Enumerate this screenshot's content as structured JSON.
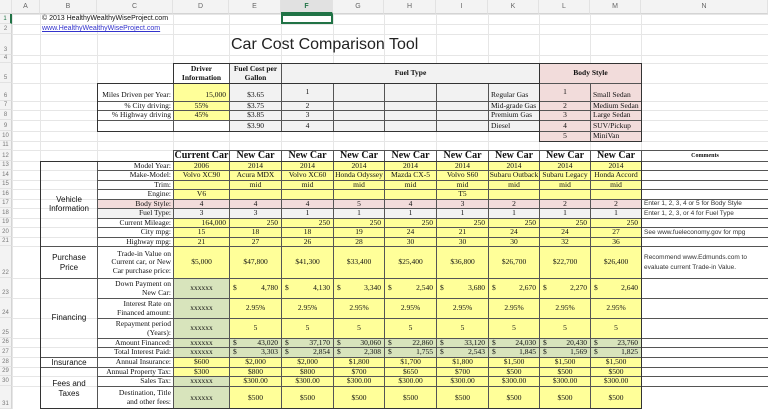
{
  "sheet": {
    "columns": [
      "",
      "A",
      "B",
      "C",
      "D",
      "E",
      "F",
      "G",
      "H",
      "I",
      "K",
      "L",
      "M",
      "N"
    ],
    "selected_column": "F",
    "selected_row": "1",
    "rows": [
      "1",
      "2",
      "3",
      "4",
      "5",
      "6",
      "7",
      "8",
      "9",
      "10",
      "11",
      "12",
      "13",
      "14",
      "15",
      "16",
      "17",
      "18",
      "19",
      "20",
      "21",
      "22",
      "23",
      "24",
      "25",
      "26",
      "27",
      "28",
      "29",
      "30",
      "31"
    ]
  },
  "header": {
    "copyright": "© 2013 HealthyWealthyWiseProject.com",
    "link": "www.HealthyWealthyWiseProject.com",
    "title": "Car Cost Comparison Tool"
  },
  "driver": {
    "header": "Driver Information",
    "rows": [
      {
        "label": "Miles Driven per Year:",
        "value": "15,000"
      },
      {
        "label": "% City driving:",
        "value": "55%"
      },
      {
        "label": "% Highway driving",
        "value": "45%"
      }
    ]
  },
  "fuel_cost": {
    "header": "Fuel Cost per Gallon",
    "values": [
      "$3.65",
      "$3.75",
      "$3.85",
      "$3.90"
    ],
    "codes": [
      "1",
      "2",
      "3",
      "4"
    ]
  },
  "fuel_type": {
    "header": "Fuel Type",
    "names": [
      "Regular Gas",
      "Mid-grade Gas",
      "Premium Gas",
      "Diesel"
    ]
  },
  "body_style": {
    "header": "Body Style",
    "items": [
      {
        "code": "1",
        "name": "Small Sedan"
      },
      {
        "code": "2",
        "name": "Medium Sedan"
      },
      {
        "code": "3",
        "name": "Large Sedan"
      },
      {
        "code": "4",
        "name": "SUV/Pickup"
      },
      {
        "code": "5",
        "name": "MiniVan"
      }
    ]
  },
  "comparison": {
    "comments_header": "Comments",
    "car_headers": [
      "Current Car",
      "New Car",
      "New Car",
      "New Car",
      "New Car",
      "New Car",
      "New Car",
      "New Car",
      "New Car"
    ],
    "sections": {
      "vehicle": "Vehicle Information",
      "purchase": "Purchase Price",
      "financing": "Financing",
      "insurance": "Insurance",
      "fees": "Fees and Taxes"
    },
    "labels": {
      "model_year": "Model Year:",
      "make_model": "Make-Model:",
      "trim": "Trim:",
      "engine": "Engine:",
      "body_style": "Body Style:",
      "fuel_type": "Fuel Type:",
      "mileage": "Current Mileage:",
      "city_mpg": "City mpg:",
      "hwy_mpg": "Highway mpg:",
      "price": "Trade-in Value on Current car, or New Car purchase price:",
      "down": "Down Payment on New Car:",
      "rate": "Interest Rate on Financed amount:",
      "period": "Repayment period (Years):",
      "financed": "Amount Financed:",
      "interest": "Total Interest Paid:",
      "insurance": "Annual Insurance:",
      "property_tax": "Annual Property Tax:",
      "sales_tax": "Sales Tax:",
      "fees": "Destination, Title and other fees:"
    },
    "cars": [
      {
        "year": "2006",
        "model": "Volvo XC90",
        "trim": "",
        "engine": "V6",
        "body": "4",
        "fuel": "3",
        "mileage": "164,000",
        "city": "15",
        "hwy": "21",
        "price": "$5,000",
        "down": "xxxxxx",
        "rate": "xxxxxx",
        "period": "xxxxxx",
        "financed": "xxxxxx",
        "interest": "xxxxxx",
        "insurance": "$600",
        "property_tax": "$300",
        "sales_tax": "xxxxxx",
        "fees": "xxxxxx"
      },
      {
        "year": "2014",
        "model": "Acura MDX",
        "trim": "mid",
        "engine": "",
        "body": "4",
        "fuel": "3",
        "mileage": "250",
        "city": "18",
        "hwy": "27",
        "price": "$47,800",
        "down": "4,780",
        "rate": "2.95%",
        "period": "5",
        "financed": "43,020",
        "interest": "3,303",
        "insurance": "$2,000",
        "property_tax": "$800",
        "sales_tax": "$300.00",
        "fees": "$500"
      },
      {
        "year": "2014",
        "model": "Volvo XC60",
        "trim": "mid",
        "engine": "",
        "body": "4",
        "fuel": "1",
        "mileage": "250",
        "city": "18",
        "hwy": "26",
        "price": "$41,300",
        "down": "4,130",
        "rate": "2.95%",
        "period": "5",
        "financed": "37,170",
        "interest": "2,854",
        "insurance": "$2,000",
        "property_tax": "$800",
        "sales_tax": "$300.00",
        "fees": "$500"
      },
      {
        "year": "2014",
        "model": "Honda Odyssey",
        "trim": "mid",
        "engine": "",
        "body": "5",
        "fuel": "1",
        "mileage": "250",
        "city": "19",
        "hwy": "28",
        "price": "$33,400",
        "down": "3,340",
        "rate": "2.95%",
        "period": "5",
        "financed": "30,060",
        "interest": "2,308",
        "insurance": "$1,800",
        "property_tax": "$700",
        "sales_tax": "$300.00",
        "fees": "$500"
      },
      {
        "year": "2014",
        "model": "Mazda CX-5",
        "trim": "mid",
        "engine": "",
        "body": "4",
        "fuel": "1",
        "mileage": "250",
        "city": "24",
        "hwy": "30",
        "price": "$25,400",
        "down": "2,540",
        "rate": "2.95%",
        "period": "5",
        "financed": "22,860",
        "interest": "1,755",
        "insurance": "$1,700",
        "property_tax": "$650",
        "sales_tax": "$300.00",
        "fees": "$500"
      },
      {
        "year": "2014",
        "model": "Volvo S60",
        "trim": "mid",
        "engine": "T5",
        "body": "3",
        "fuel": "1",
        "mileage": "250",
        "city": "21",
        "hwy": "30",
        "price": "$36,800",
        "down": "3,680",
        "rate": "2.95%",
        "period": "5",
        "financed": "33,120",
        "interest": "2,543",
        "insurance": "$1,800",
        "property_tax": "$700",
        "sales_tax": "$300.00",
        "fees": "$500"
      },
      {
        "year": "2014",
        "model": "Subaru Outback",
        "trim": "mid",
        "engine": "",
        "body": "2",
        "fuel": "1",
        "mileage": "250",
        "city": "24",
        "hwy": "30",
        "price": "$26,700",
        "down": "2,670",
        "rate": "2.95%",
        "period": "5",
        "financed": "24,030",
        "interest": "1,845",
        "insurance": "$1,500",
        "property_tax": "$500",
        "sales_tax": "$300.00",
        "fees": "$500"
      },
      {
        "year": "2014",
        "model": "Subaru Legacy",
        "trim": "mid",
        "engine": "",
        "body": "2",
        "fuel": "1",
        "mileage": "250",
        "city": "24",
        "hwy": "32",
        "price": "$22,700",
        "down": "2,270",
        "rate": "2.95%",
        "period": "5",
        "financed": "20,430",
        "interest": "1,569",
        "insurance": "$1,500",
        "property_tax": "$500",
        "sales_tax": "$300.00",
        "fees": "$500"
      },
      {
        "year": "2014",
        "model": "Honda Accord",
        "trim": "mid",
        "engine": "",
        "body": "2",
        "fuel": "1",
        "mileage": "250",
        "city": "27",
        "hwy": "36",
        "price": "$26,400",
        "down": "2,640",
        "rate": "2.95%",
        "period": "5",
        "financed": "23,760",
        "interest": "1,825",
        "insurance": "$1,500",
        "property_tax": "$500",
        "sales_tax": "$300.00",
        "fees": "$500"
      }
    ],
    "comments": {
      "body_style": "Enter 1, 2, 3, 4 or 5 for Body Style",
      "fuel_type": "Enter 1, 2, 3, or 4 for Fuel Type",
      "city_mpg": "See www.fueleconomy.gov for mpg",
      "price": "Recommend www.Edmunds.com to evaluate current Trade-in Value."
    },
    "currency_symbol": "$"
  },
  "colors": {
    "input_yellow": "#ffff99",
    "body_style_pink": "#f2dcdb",
    "fuel_gray": "#f2f2f2",
    "computed_green": "#d8e4bc",
    "excel_green": "#217346",
    "link_blue": "#3333cc"
  }
}
